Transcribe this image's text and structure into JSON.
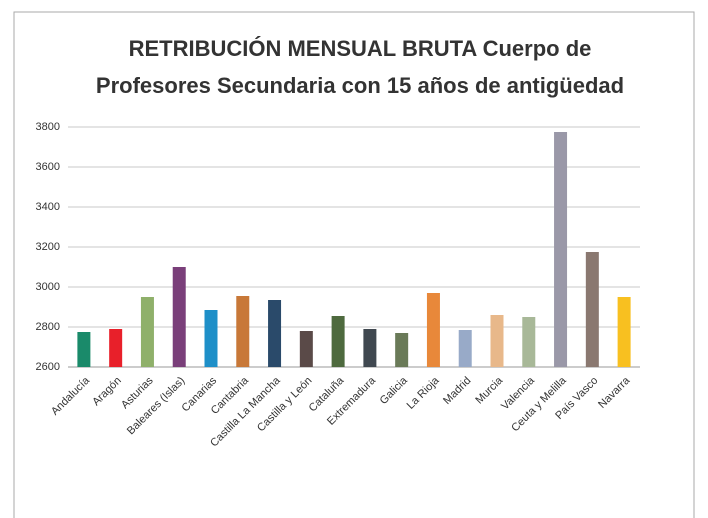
{
  "chart_data": {
    "type": "bar",
    "title": [
      "RETRIBUCIÓN MENSUAL BRUTA Cuerpo de",
      "Profesores Secundaria con 15 años de antigüedad"
    ],
    "categories": [
      "Andalucía",
      "Aragón",
      "Asturias",
      "Baleares (Islas)",
      "Canarias",
      "Cantabria",
      "Castilla La Mancha",
      "Castilla y León",
      "Cataluña",
      "Extremadura",
      "Galicia",
      "La Rioja",
      "Madrid",
      "Murcia",
      "Valencia",
      "Ceuta y Melilla",
      "País Vasco",
      "Navarra"
    ],
    "values": [
      2775,
      2790,
      2950,
      3100,
      2885,
      2955,
      2935,
      2780,
      2855,
      2790,
      2770,
      2970,
      2785,
      2860,
      2850,
      3775,
      3175,
      2950
    ],
    "colors": [
      "#1a8a6a",
      "#e8202a",
      "#8fb06a",
      "#7a3f7a",
      "#1e8fc8",
      "#c87838",
      "#2a4a6a",
      "#5a4a48",
      "#4e6a3e",
      "#404850",
      "#6a7a58",
      "#e8883a",
      "#98aac8",
      "#e8b88a",
      "#a8b898",
      "#9a98a8",
      "#8a7870",
      "#f8c020"
    ],
    "ylim": [
      2600,
      3800
    ],
    "yticks": [
      2600,
      2800,
      3000,
      3200,
      3400,
      3600,
      3800
    ],
    "grid": true
  }
}
